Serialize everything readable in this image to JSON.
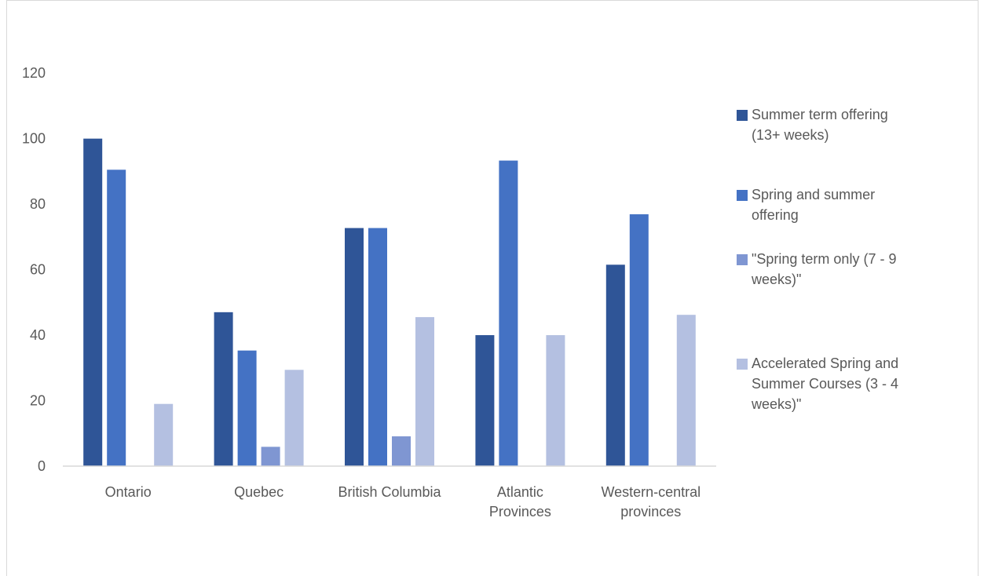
{
  "chart_data": {
    "type": "bar",
    "title": "",
    "xlabel": "",
    "ylabel": "",
    "ylim": [
      0,
      120
    ],
    "yticks": [
      0,
      20,
      40,
      60,
      80,
      100,
      120
    ],
    "grid": false,
    "legend_position": "right",
    "categories": [
      [
        "Ontario"
      ],
      [
        "Quebec"
      ],
      [
        "British Columbia"
      ],
      [
        "Atlantic",
        "Provinces"
      ],
      [
        "Western-central",
        "provinces"
      ]
    ],
    "series": [
      {
        "name": [
          "Summer term offering",
          "(13+ weeks)"
        ],
        "color": "#2f5597",
        "values": [
          100,
          47,
          72.7,
          40,
          61.5
        ]
      },
      {
        "name": [
          "Spring and summer",
          "offering"
        ],
        "color": "#4472c4",
        "values": [
          90.5,
          35.3,
          72.7,
          93.3,
          76.9
        ]
      },
      {
        "name": [
          "\"Spring term only (7 - 9",
          "weeks)\""
        ],
        "color": "#7f96d2",
        "values": [
          0,
          5.9,
          9.1,
          0,
          0
        ]
      },
      {
        "name": [
          "Accelerated Spring and",
          "Summer Courses (3 - 4",
          "weeks)\""
        ],
        "color": "#b4c0e1",
        "values": [
          19,
          29.4,
          45.5,
          40,
          46.2
        ]
      }
    ]
  }
}
